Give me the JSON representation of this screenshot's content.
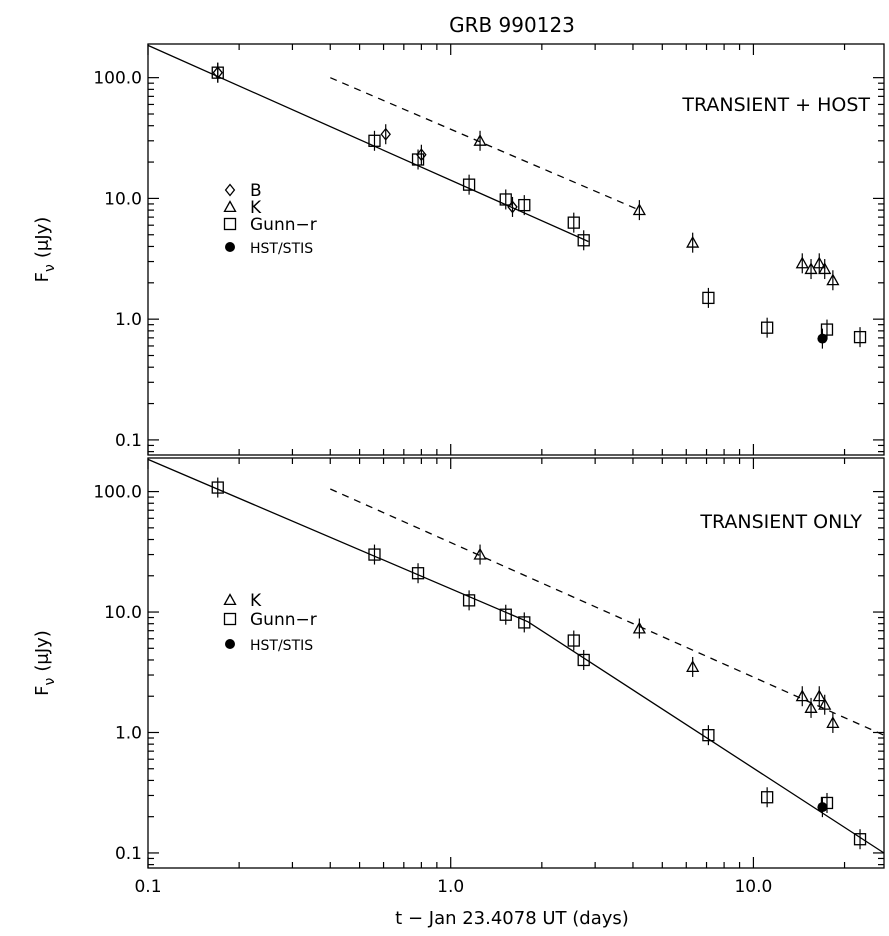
{
  "chart_data": [
    {
      "type": "scatter",
      "title": "GRB 990123",
      "ylabel": "F_ν (μJy)",
      "ylabel_main": "F",
      "ylabel_sub": "ν",
      "ylabel_unit": "(μJy)",
      "annotation": "TRANSIENT + HOST",
      "xscale": "log",
      "yscale": "log",
      "xlim": [
        0.1,
        27
      ],
      "ylim": [
        0.075,
        190
      ],
      "y_ticks": [
        "100.0",
        "10.0",
        "1.0",
        "0.1"
      ],
      "y_tick_values": [
        100,
        10,
        1,
        0.1
      ],
      "legend_entries": [
        {
          "marker": "diamond",
          "label": "B"
        },
        {
          "marker": "triangle",
          "label": "K"
        },
        {
          "marker": "square",
          "label": "Gunn−r"
        },
        {
          "marker": "filled-circle",
          "label": "HST/STIS"
        }
      ],
      "legend_placement": "left-middle",
      "series": [
        {
          "marker": "diamond",
          "points": [
            [
              0.17,
              110
            ],
            [
              0.61,
              34
            ],
            [
              0.8,
              23
            ],
            [
              1.6,
              8.5
            ]
          ]
        },
        {
          "marker": "triangle",
          "points": [
            [
              1.25,
              30
            ],
            [
              4.2,
              8
            ],
            [
              6.3,
              4.3
            ],
            [
              14.5,
              2.9
            ],
            [
              15.5,
              2.6
            ],
            [
              16.5,
              2.9
            ],
            [
              17.2,
              2.6
            ],
            [
              18.3,
              2.1
            ]
          ]
        },
        {
          "marker": "square",
          "points": [
            [
              0.17,
              110
            ],
            [
              0.56,
              30
            ],
            [
              0.78,
              21
            ],
            [
              1.15,
              13
            ],
            [
              1.52,
              9.8
            ],
            [
              1.75,
              8.8
            ],
            [
              2.55,
              6.3
            ],
            [
              2.75,
              4.5
            ],
            [
              7.1,
              1.5
            ],
            [
              11.1,
              0.85
            ],
            [
              17.5,
              0.82
            ],
            [
              22.5,
              0.71
            ]
          ]
        },
        {
          "marker": "filled-circle",
          "points": [
            [
              16.9,
              0.69
            ]
          ]
        }
      ],
      "fit_lines": [
        {
          "style": "solid",
          "points": [
            [
              0.1,
              185
            ],
            [
              2.85,
              4.4
            ]
          ]
        },
        {
          "style": "dashed",
          "points": [
            [
              0.4,
              100
            ],
            [
              4.2,
              8
            ]
          ]
        }
      ]
    },
    {
      "type": "scatter",
      "ylabel": "F_ν (μJy)",
      "ylabel_main": "F",
      "ylabel_sub": "ν",
      "ylabel_unit": "(μJy)",
      "xlabel": "t − Jan 23.4078 UT (days)",
      "annotation": "TRANSIENT ONLY",
      "xscale": "log",
      "yscale": "log",
      "xlim": [
        0.1,
        27
      ],
      "ylim": [
        0.075,
        190
      ],
      "x_ticks": [
        "0.1",
        "1.0",
        "10.0"
      ],
      "x_tick_values": [
        0.1,
        1,
        10
      ],
      "y_ticks": [
        "100.0",
        "10.0",
        "1.0",
        "0.1"
      ],
      "y_tick_values": [
        100,
        10,
        1,
        0.1
      ],
      "legend_entries": [
        {
          "marker": "triangle",
          "label": "K"
        },
        {
          "marker": "square",
          "label": "Gunn−r"
        },
        {
          "marker": "filled-circle",
          "label": "HST/STIS"
        }
      ],
      "legend_placement": "left-middle",
      "series": [
        {
          "marker": "triangle",
          "points": [
            [
              1.25,
              30
            ],
            [
              4.2,
              7.3
            ],
            [
              6.3,
              3.5
            ],
            [
              14.5,
              2.0
            ],
            [
              15.5,
              1.6
            ],
            [
              16.5,
              2.0
            ],
            [
              17.2,
              1.7
            ],
            [
              18.3,
              1.2
            ]
          ]
        },
        {
          "marker": "square",
          "points": [
            [
              0.17,
              108
            ],
            [
              0.56,
              30
            ],
            [
              0.78,
              21
            ],
            [
              1.15,
              12.5
            ],
            [
              1.52,
              9.5
            ],
            [
              1.75,
              8.2
            ],
            [
              2.55,
              5.8
            ],
            [
              2.75,
              4.0
            ],
            [
              7.1,
              0.95
            ],
            [
              11.1,
              0.29
            ],
            [
              17.5,
              0.26
            ],
            [
              22.5,
              0.13
            ]
          ]
        },
        {
          "marker": "filled-circle",
          "points": [
            [
              16.9,
              0.24
            ]
          ]
        }
      ],
      "fit_lines": [
        {
          "style": "solid",
          "points": [
            [
              0.1,
              185
            ],
            [
              1.8,
              8.3
            ],
            [
              27,
              0.1
            ]
          ]
        },
        {
          "style": "dashed",
          "points": [
            [
              0.4,
              105
            ],
            [
              27,
              0.95
            ]
          ]
        }
      ]
    }
  ]
}
